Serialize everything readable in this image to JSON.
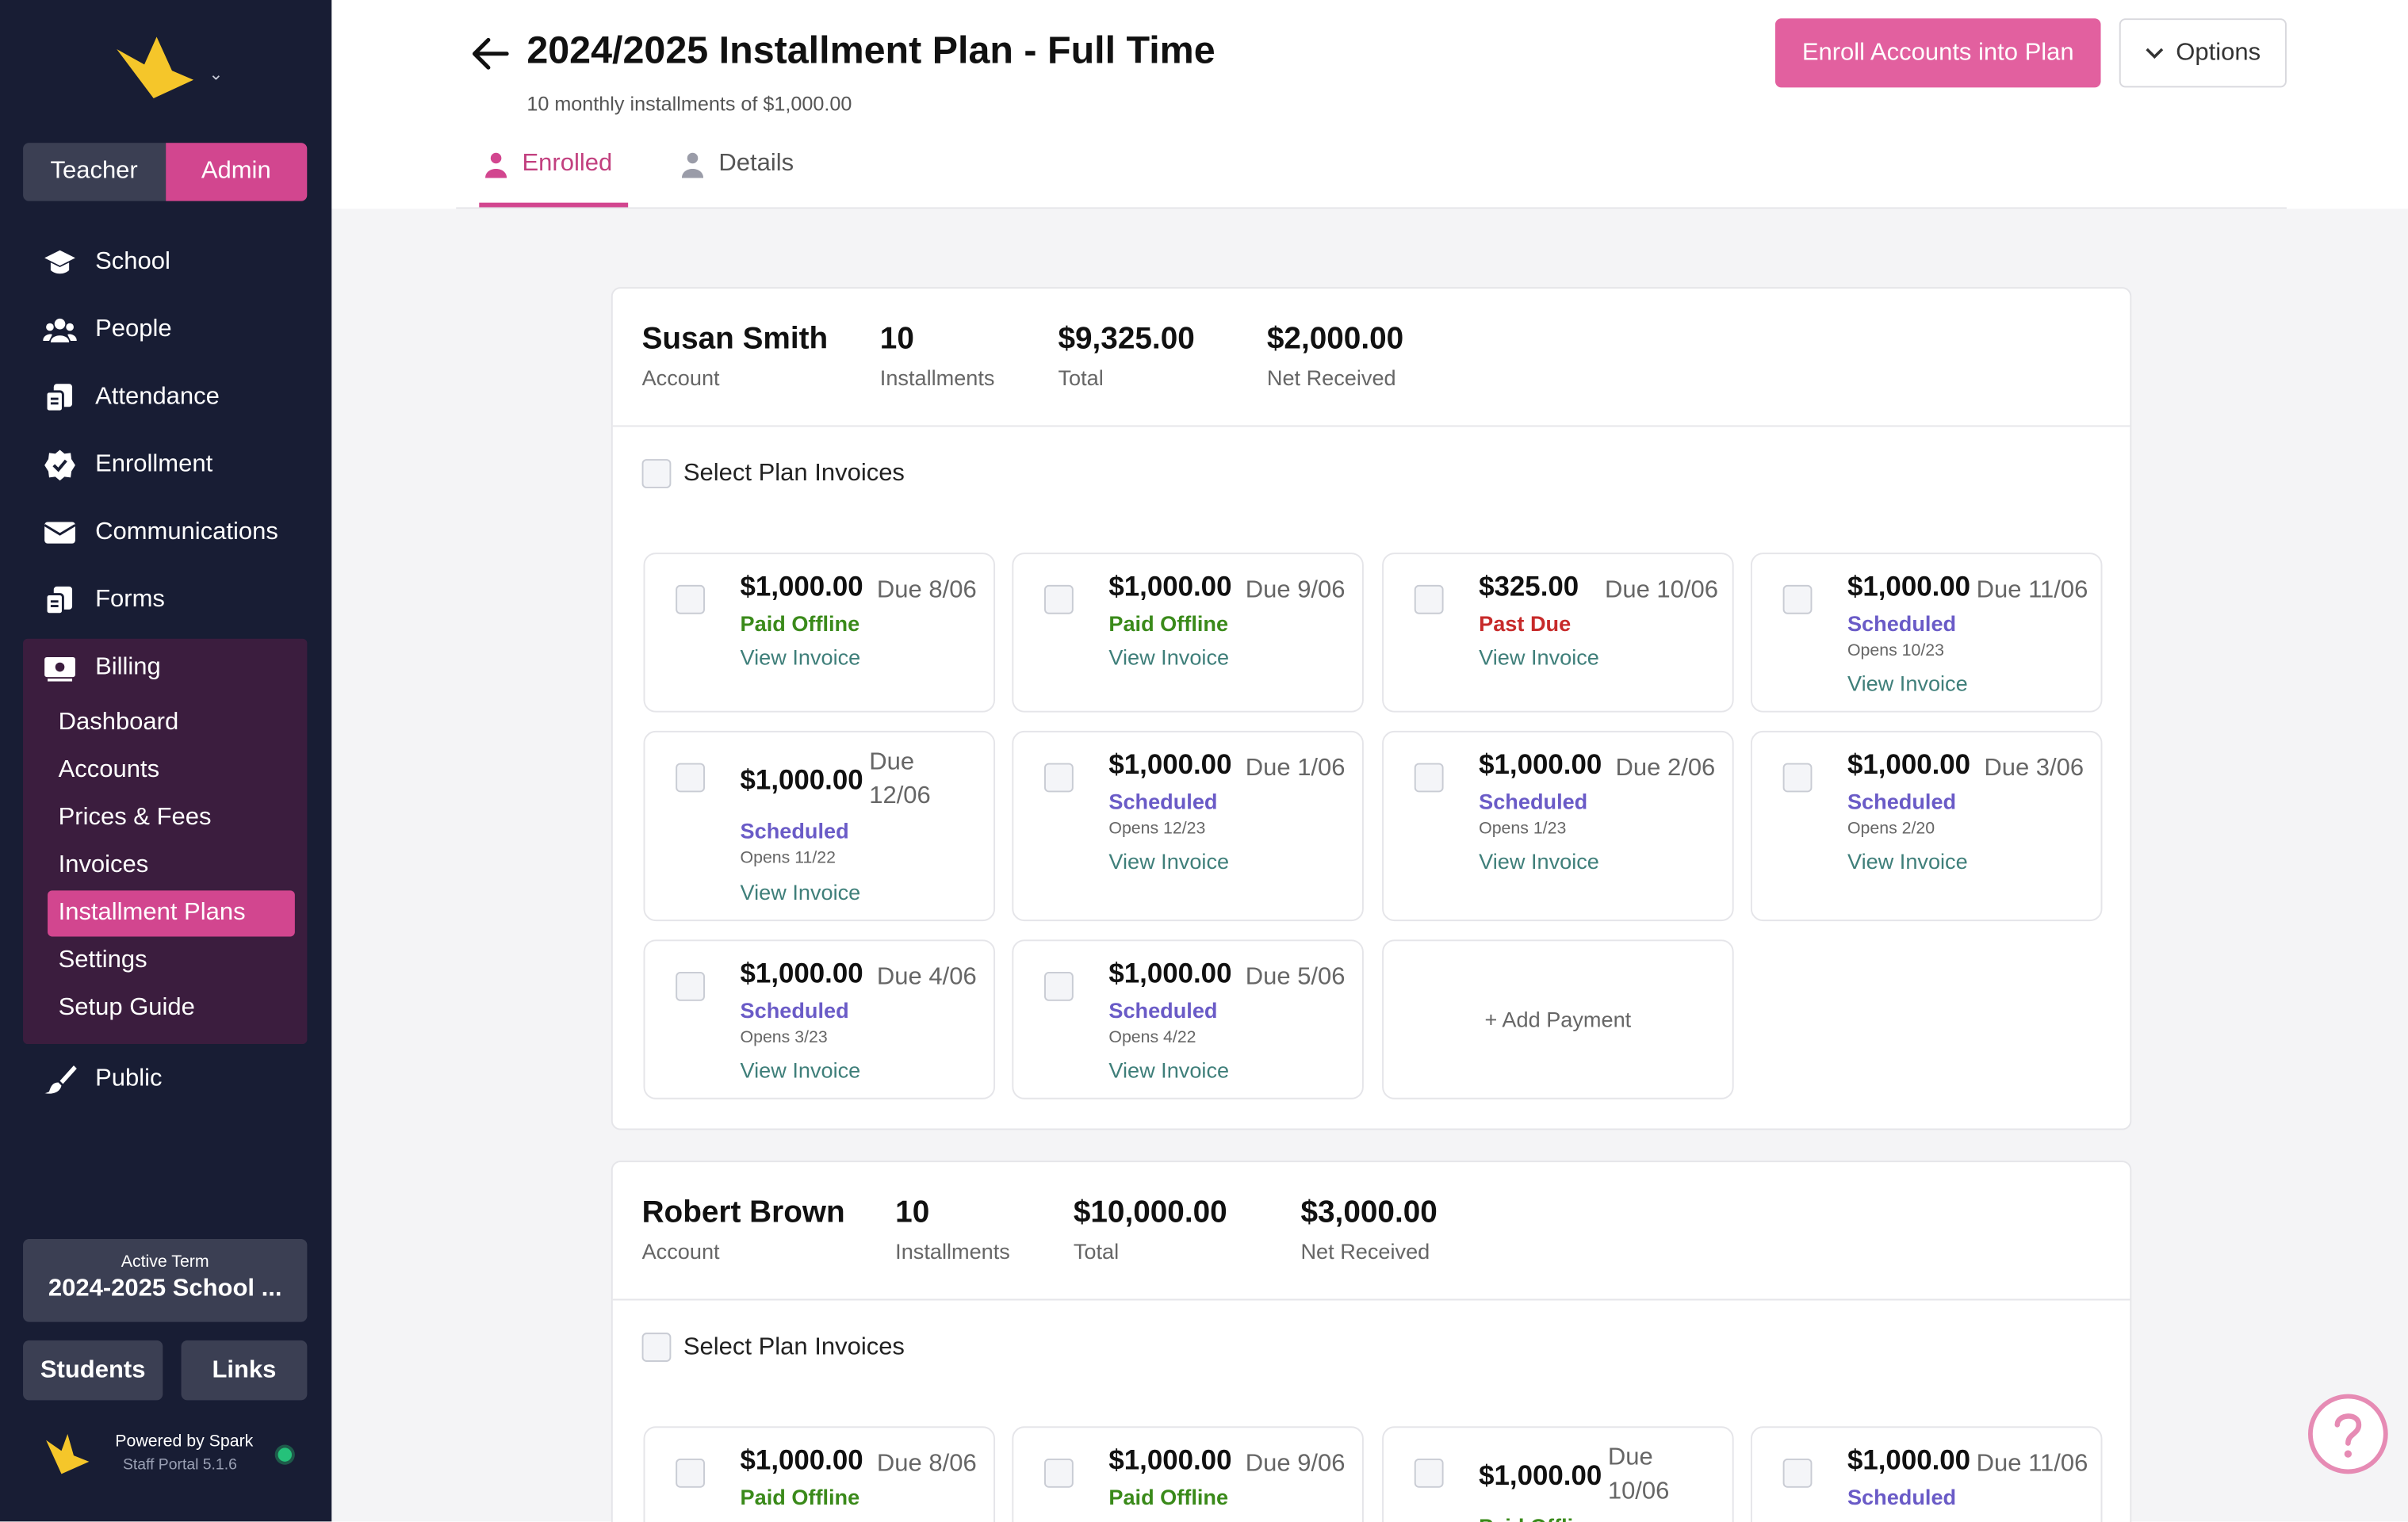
{
  "sidebar": {
    "roles": {
      "teacher": "Teacher",
      "admin": "Admin"
    },
    "nav": [
      {
        "label": "School",
        "icon": "school-icon"
      },
      {
        "label": "People",
        "icon": "people-icon"
      },
      {
        "label": "Attendance",
        "icon": "attendance-icon"
      },
      {
        "label": "Enrollment",
        "icon": "enrollment-icon"
      },
      {
        "label": "Communications",
        "icon": "envelope-icon"
      },
      {
        "label": "Forms",
        "icon": "forms-icon"
      }
    ],
    "billing": {
      "label": "Billing",
      "icon": "billing-icon",
      "items": [
        "Dashboard",
        "Accounts",
        "Prices & Fees",
        "Invoices",
        "Installment Plans",
        "Settings",
        "Setup Guide"
      ],
      "active": "Installment Plans"
    },
    "public": {
      "label": "Public",
      "icon": "paintbrush-icon"
    },
    "active_term": {
      "label": "Active Term",
      "value": "2024-2025 School ..."
    },
    "footer_buttons": {
      "students": "Students",
      "links": "Links"
    },
    "powered": {
      "line1": "Powered by Spark",
      "line2": "Staff Portal 5.1.6"
    }
  },
  "header": {
    "title": "2024/2025 Installment Plan - Full Time",
    "subtitle": "10 monthly installments of $1,000.00",
    "enroll_button": "Enroll Accounts into Plan",
    "options_button": "Options",
    "tabs": [
      {
        "label": "Enrolled",
        "icon": "person-icon",
        "active": true
      },
      {
        "label": "Details",
        "icon": "person-icon",
        "active": false
      }
    ]
  },
  "cards": [
    {
      "name": "Susan Smith",
      "name_label": "Account",
      "installments": "10",
      "installments_label": "Installments",
      "total": "$9,325.00",
      "total_label": "Total",
      "net": "$2,000.00",
      "net_label": "Net Received",
      "select_label": "Select Plan Invoices",
      "invoices": [
        {
          "amount": "$1,000.00",
          "due": "Due 8/06",
          "status": "Paid Offline",
          "status_type": "paid",
          "opens": "",
          "link": "View Invoice"
        },
        {
          "amount": "$1,000.00",
          "due": "Due 9/06",
          "status": "Paid Offline",
          "status_type": "paid",
          "opens": "",
          "link": "View Invoice"
        },
        {
          "amount": "$325.00",
          "due": "Due 10/06",
          "status": "Past Due",
          "status_type": "past",
          "opens": "",
          "link": "View Invoice"
        },
        {
          "amount": "$1,000.00",
          "due": "Due 11/06",
          "status": "Scheduled",
          "status_type": "sched",
          "opens": "Opens 10/23",
          "link": "View Invoice"
        },
        {
          "amount": "$1,000.00",
          "due": "Due 12/06",
          "status": "Scheduled",
          "status_type": "sched",
          "opens": "Opens 11/22",
          "link": "View Invoice"
        },
        {
          "amount": "$1,000.00",
          "due": "Due 1/06",
          "status": "Scheduled",
          "status_type": "sched",
          "opens": "Opens 12/23",
          "link": "View Invoice"
        },
        {
          "amount": "$1,000.00",
          "due": "Due 2/06",
          "status": "Scheduled",
          "status_type": "sched",
          "opens": "Opens 1/23",
          "link": "View Invoice"
        },
        {
          "amount": "$1,000.00",
          "due": "Due 3/06",
          "status": "Scheduled",
          "status_type": "sched",
          "opens": "Opens 2/20",
          "link": "View Invoice"
        },
        {
          "amount": "$1,000.00",
          "due": "Due 4/06",
          "status": "Scheduled",
          "status_type": "sched",
          "opens": "Opens 3/23",
          "link": "View Invoice"
        },
        {
          "amount": "$1,000.00",
          "due": "Due 5/06",
          "status": "Scheduled",
          "status_type": "sched",
          "opens": "Opens 4/22",
          "link": "View Invoice"
        }
      ],
      "add_payment": "+ Add Payment"
    },
    {
      "name": "Robert Brown",
      "name_label": "Account",
      "installments": "10",
      "installments_label": "Installments",
      "total": "$10,000.00",
      "total_label": "Total",
      "net": "$3,000.00",
      "net_label": "Net Received",
      "select_label": "Select Plan Invoices",
      "invoices": [
        {
          "amount": "$1,000.00",
          "due": "Due 8/06",
          "status": "Paid Offline",
          "status_type": "paid"
        },
        {
          "amount": "$1,000.00",
          "due": "Due 9/06",
          "status": "Paid Offline",
          "status_type": "paid"
        },
        {
          "amount": "$1,000.00",
          "due": "Due 10/06",
          "status": "Paid Offline",
          "status_type": "paid"
        },
        {
          "amount": "$1,000.00",
          "due": "Due 11/06",
          "status": "Scheduled",
          "status_type": "sched"
        }
      ]
    }
  ],
  "colors": {
    "accent": "#d2468f",
    "sidebar": "#181d34",
    "paid": "#3a8a1a",
    "past_due": "#c72a2a",
    "scheduled": "#6a5bc7",
    "link": "#3f7f7a"
  }
}
